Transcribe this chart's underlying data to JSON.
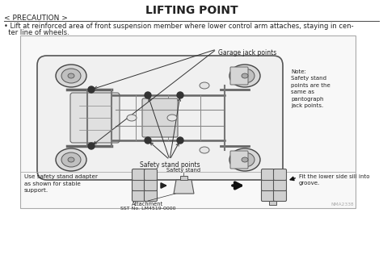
{
  "title": "LIFTING POINT",
  "title_fontsize": 10,
  "title_fontweight": "bold",
  "bg_color": "#ffffff",
  "precaution_label": "< PRECAUTION >",
  "precaution_line1": "  Lift at reinforced area of front suspension member where lower control arm attaches, staying in cen-",
  "precaution_line2": "  ter line of wheels.",
  "garage_jack_label": "Garage jack points",
  "safety_stand_label": "Safety stand points",
  "note_text": "Note:\nSafety stand\npoints are the\nsame as\npantograph\njack points.",
  "bottom_left_text": "Use safety stand adapter\nas shown for stable\nsupport.",
  "attachment_label": "Attachment",
  "sst_label": "SST No. LM4519-0000",
  "safety_stand_label2": "Safety stand",
  "fit_text": "Fit the lower side sill into\ngroove.",
  "watermark": "NMA2338",
  "text_color": "#222222",
  "line_color": "#333333",
  "gray_light": "#e8e8e8",
  "gray_mid": "#c0c0c0",
  "gray_dark": "#888888"
}
